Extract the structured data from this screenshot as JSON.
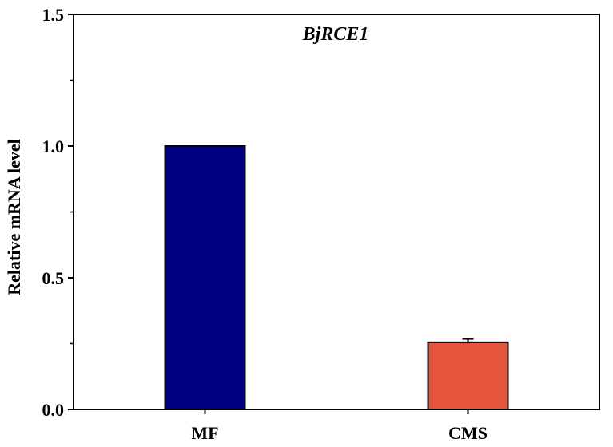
{
  "chart_data": {
    "type": "bar",
    "title": "BjRCE1",
    "xlabel": "",
    "ylabel": "Relative mRNA level",
    "categories": [
      "MF",
      "CMS"
    ],
    "values": [
      1.0,
      0.255
    ],
    "errors": [
      0,
      0.013
    ],
    "colors": [
      "#000080",
      "#E5553B"
    ],
    "ylim": [
      0,
      1.5
    ],
    "yticks": [
      "0.0",
      "0.5",
      "1.0",
      "1.5"
    ],
    "ytick_values": [
      0,
      0.5,
      1.0,
      1.5
    ],
    "grid": false,
    "legend": "none"
  }
}
